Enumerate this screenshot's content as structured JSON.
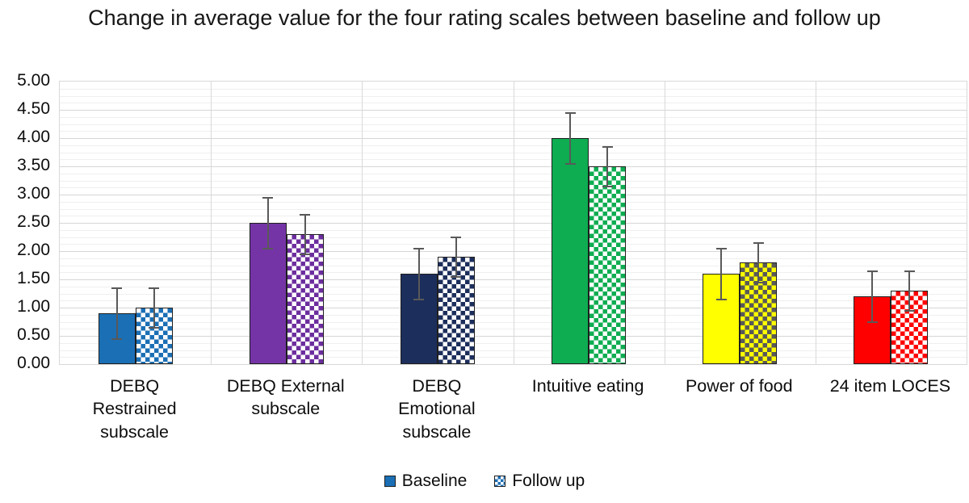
{
  "chart_data": {
    "type": "bar",
    "title": "Change in average value for the four rating scales between baseline and follow up",
    "categories": [
      "DEBQ\nRestrained\nsubscale",
      "DEBQ External\nsubscale",
      "DEBQ\nEmotional\nsubscale",
      "Intuitive eating",
      "Power of food",
      "24 item LOCES"
    ],
    "series": [
      {
        "name": "Baseline",
        "pattern": "solid",
        "values": [
          0.9,
          2.5,
          1.6,
          4.0,
          1.6,
          1.2
        ],
        "error": [
          0.45,
          0.45,
          0.45,
          0.45,
          0.45,
          0.45
        ]
      },
      {
        "name": "Follow up",
        "pattern": "checker",
        "values": [
          1.0,
          2.3,
          1.9,
          3.5,
          1.8,
          1.3
        ],
        "error": [
          0.35,
          0.35,
          0.35,
          0.35,
          0.35,
          0.35
        ]
      }
    ],
    "category_colors": [
      {
        "fill": "#1b6fb5",
        "pattern_fg": "#1b6fb5",
        "pattern_bg": "#ffffff"
      },
      {
        "fill": "#7434a6",
        "pattern_fg": "#6c2d9e",
        "pattern_bg": "#ffffff"
      },
      {
        "fill": "#1c2e5b",
        "pattern_fg": "#1c2e5b",
        "pattern_bg": "#ffffff"
      },
      {
        "fill": "#0ead51",
        "pattern_fg": "#0ead51",
        "pattern_bg": "#ffffff"
      },
      {
        "fill": "#ffff00",
        "pattern_fg": "#595959",
        "pattern_bg": "#ffff00"
      },
      {
        "fill": "#ff0000",
        "pattern_fg": "#ff0000",
        "pattern_bg": "#ffffff"
      }
    ],
    "ylim": [
      0,
      5
    ],
    "yticks": [
      "0.00",
      "0.50",
      "1.00",
      "1.50",
      "2.00",
      "2.50",
      "3.00",
      "3.50",
      "4.00",
      "4.50",
      "5.00"
    ],
    "major_unit": 0.5,
    "minor_unit": 0.125,
    "grid": "horizontal major+minor, vertical category separators",
    "legend_position": "bottom",
    "error_bar_color": "#595959"
  }
}
